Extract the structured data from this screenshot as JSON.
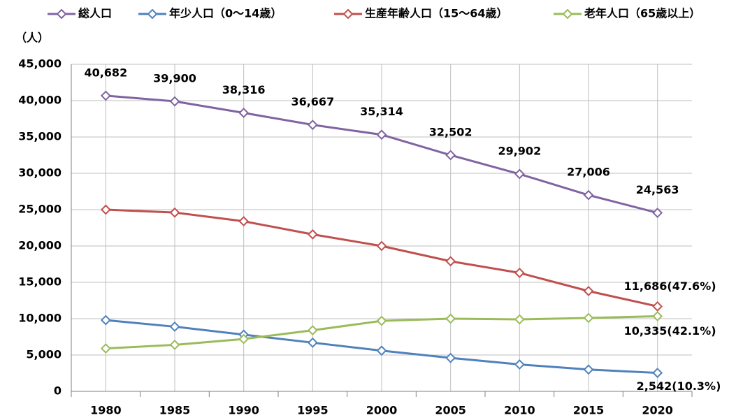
{
  "chart_data": {
    "type": "line",
    "ylabel": "（人）",
    "categories": [
      "1980",
      "1985",
      "1990",
      "1995",
      "2000",
      "2005",
      "2010",
      "2015",
      "2020"
    ],
    "series": [
      {
        "name": "総人口",
        "color": "#8064a2",
        "values": [
          40682,
          39900,
          38316,
          36667,
          35314,
          32502,
          29902,
          27006,
          24563
        ],
        "value_labels": [
          "40,682",
          "39,900",
          "38,316",
          "36,667",
          "35,314",
          "32,502",
          "29,902",
          "27,006",
          "24,563"
        ]
      },
      {
        "name": "年少人口（0～14歳）",
        "color": "#4f81bd",
        "values": [
          9800,
          8900,
          7800,
          6700,
          5600,
          4600,
          3700,
          3000,
          2542
        ],
        "value_labels": [
          null,
          null,
          null,
          null,
          null,
          null,
          null,
          null,
          "2,542(10.3%)"
        ]
      },
      {
        "name": "生産年齢人口（15～64歳）",
        "color": "#c0504d",
        "values": [
          25000,
          24600,
          23400,
          21600,
          20000,
          17900,
          16300,
          13800,
          11686
        ],
        "value_labels": [
          null,
          null,
          null,
          null,
          null,
          null,
          null,
          null,
          "11,686(47.6%)"
        ]
      },
      {
        "name": "老年人口（65歳以上）",
        "color": "#9bbb59",
        "values": [
          5900,
          6400,
          7200,
          8400,
          9700,
          10000,
          9900,
          10100,
          10335
        ],
        "value_labels": [
          null,
          null,
          null,
          null,
          null,
          null,
          null,
          null,
          "10,335(42.1%)"
        ]
      }
    ],
    "ylim": [
      0,
      45000
    ],
    "yticks": [
      0,
      {
        "value": 5000,
        "label": "5,000"
      },
      {
        "value": 10000,
        "label": "10,000"
      },
      {
        "value": 15000,
        "label": "15,000"
      },
      {
        "value": 20000,
        "label": "20,000"
      },
      {
        "value": 25000,
        "label": "25,000"
      },
      {
        "value": 30000,
        "label": "30,000"
      },
      {
        "value": 35000,
        "label": "35,000"
      },
      {
        "value": 40000,
        "label": "40,000"
      },
      {
        "value": 45000,
        "label": "45,000"
      }
    ],
    "grid": true
  }
}
